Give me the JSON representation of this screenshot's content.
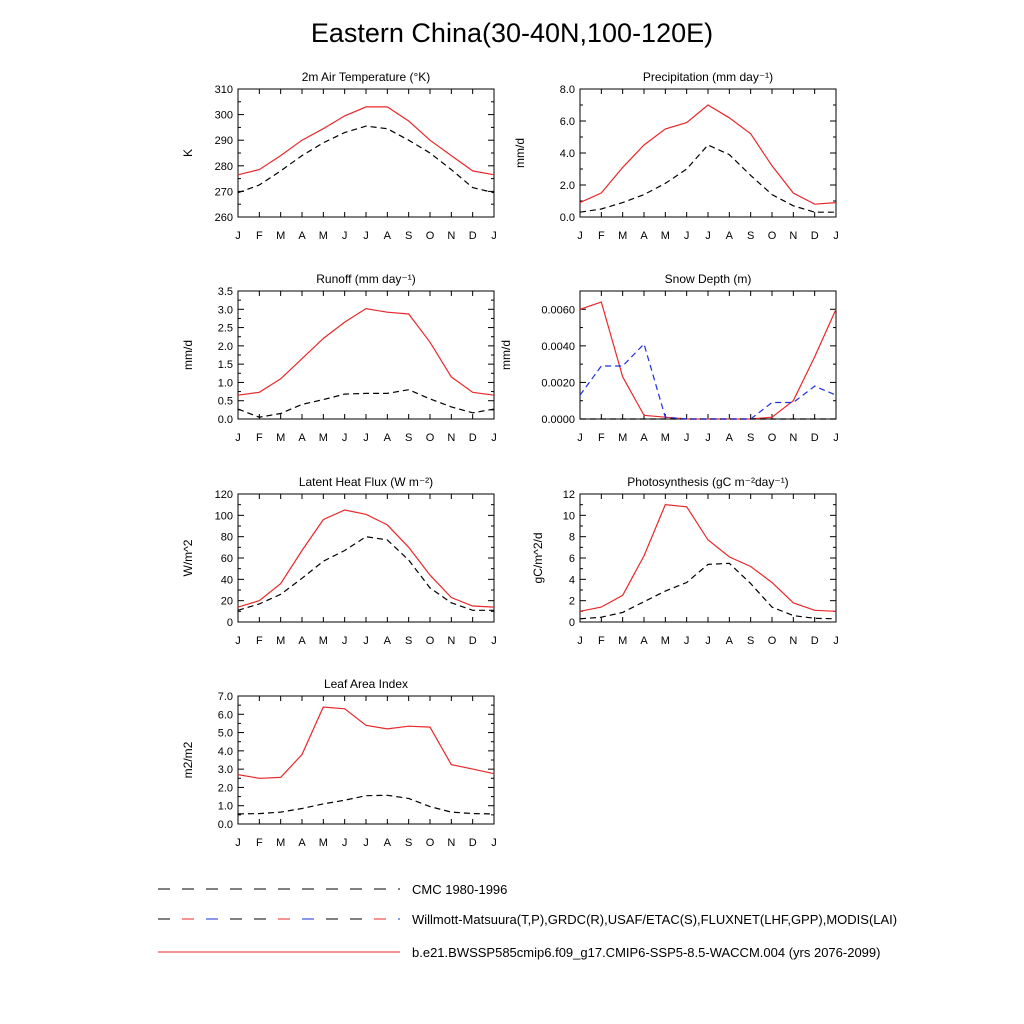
{
  "title": "Eastern China(30-40N,100-120E)",
  "months": [
    "J",
    "F",
    "M",
    "A",
    "M",
    "J",
    "J",
    "A",
    "S",
    "O",
    "N",
    "D",
    "J"
  ],
  "colors": {
    "model": "#e8282a",
    "obs": "#000000",
    "obs_snow": "#1f2ee0"
  },
  "chart_data": [
    {
      "type": "line",
      "title": "2m Air Temperature (°K)",
      "ylabel": "K",
      "ylim": [
        260,
        310
      ],
      "yticks": [
        "260",
        "270",
        "280",
        "290",
        "300",
        "310"
      ],
      "ytick_values": [
        260,
        270,
        280,
        290,
        300,
        310
      ],
      "series": [
        {
          "role": "model",
          "values": [
            276.5,
            278.5,
            284,
            290,
            294.5,
            299.5,
            303,
            303,
            297.5,
            290,
            284,
            278,
            276.5
          ]
        },
        {
          "role": "obs",
          "values": [
            269.5,
            272.5,
            278,
            284,
            289,
            293,
            295.5,
            294.5,
            290,
            285,
            278.5,
            271.5,
            269.5
          ]
        }
      ]
    },
    {
      "type": "line",
      "title": "Precipitation (mm day⁻¹)",
      "ylabel": "mm/d",
      "ylim": [
        0,
        8
      ],
      "yticks": [
        "0.0",
        "2.0",
        "4.0",
        "6.0",
        "8.0"
      ],
      "ytick_values": [
        0,
        2,
        4,
        6,
        8
      ],
      "series": [
        {
          "role": "model",
          "values": [
            0.9,
            1.5,
            3.1,
            4.5,
            5.5,
            5.9,
            7.0,
            6.2,
            5.2,
            3.2,
            1.5,
            0.8,
            0.9
          ]
        },
        {
          "role": "obs",
          "values": [
            0.3,
            0.5,
            0.9,
            1.4,
            2.1,
            3.0,
            4.5,
            3.9,
            2.6,
            1.4,
            0.7,
            0.3,
            0.3
          ]
        }
      ]
    },
    {
      "type": "line",
      "title": "Runoff (mm day⁻¹)",
      "ylabel": "mm/d",
      "ylim": [
        0,
        3.5
      ],
      "yticks": [
        "0.0",
        "0.5",
        "1.0",
        "1.5",
        "2.0",
        "2.5",
        "3.0",
        "3.5"
      ],
      "ytick_values": [
        0,
        0.5,
        1,
        1.5,
        2,
        2.5,
        3,
        3.5
      ],
      "series": [
        {
          "role": "model",
          "values": [
            0.65,
            0.73,
            1.1,
            1.65,
            2.2,
            2.65,
            3.02,
            2.92,
            2.87,
            2.1,
            1.15,
            0.73,
            0.65
          ]
        },
        {
          "role": "obs",
          "values": [
            0.27,
            0.05,
            0.15,
            0.4,
            0.53,
            0.68,
            0.7,
            0.7,
            0.8,
            0.55,
            0.33,
            0.17,
            0.27
          ]
        }
      ]
    },
    {
      "type": "line",
      "title": "Snow Depth (m)",
      "ylabel": "mm/d",
      "ylim": [
        0,
        0.007
      ],
      "yticks": [
        "0.0000",
        "0.0020",
        "0.0040",
        "0.0060"
      ],
      "ytick_values": [
        0,
        0.002,
        0.004,
        0.006
      ],
      "series": [
        {
          "role": "model",
          "values": [
            0.006,
            0.0064,
            0.0023,
            0.0002,
            0.0001,
            0,
            0,
            0,
            0,
            0.0001,
            0.001,
            0.0034,
            0.006
          ]
        },
        {
          "role": "obs",
          "values": [
            0,
            0,
            0,
            0,
            0,
            0,
            0,
            0,
            0,
            0,
            0,
            0,
            0
          ]
        },
        {
          "role": "obs_snow",
          "values": [
            0.0013,
            0.0029,
            0.0029,
            0.0041,
            0.0001,
            0,
            0,
            0,
            0,
            0.0009,
            0.0009,
            0.0018,
            0.0013
          ]
        }
      ]
    },
    {
      "type": "line",
      "title": "Latent Heat Flux (W m⁻²)",
      "ylabel": "W/m^2",
      "ylim": [
        0,
        120
      ],
      "yticks": [
        "0",
        "20",
        "40",
        "60",
        "80",
        "100",
        "120"
      ],
      "ytick_values": [
        0,
        20,
        40,
        60,
        80,
        100,
        120
      ],
      "series": [
        {
          "role": "model",
          "values": [
            14,
            20,
            36,
            67,
            96,
            105,
            101,
            91,
            70,
            44,
            23,
            15,
            14
          ]
        },
        {
          "role": "obs",
          "values": [
            11,
            17,
            26,
            41,
            57,
            67,
            80,
            77,
            58,
            32,
            18,
            11,
            11
          ]
        }
      ]
    },
    {
      "type": "line",
      "title": "Photosynthesis (gC m⁻²day⁻¹)",
      "ylabel": "gC/m^2/d",
      "ylim": [
        0,
        12
      ],
      "yticks": [
        "0",
        "2",
        "4",
        "6",
        "8",
        "10",
        "12"
      ],
      "ytick_values": [
        0,
        2,
        4,
        6,
        8,
        10,
        12
      ],
      "series": [
        {
          "role": "model",
          "values": [
            1.0,
            1.4,
            2.5,
            6.2,
            11.0,
            10.8,
            7.7,
            6.1,
            5.2,
            3.7,
            1.8,
            1.1,
            1.0
          ]
        },
        {
          "role": "obs",
          "values": [
            0.3,
            0.45,
            0.9,
            1.9,
            2.9,
            3.7,
            5.4,
            5.5,
            3.6,
            1.4,
            0.6,
            0.35,
            0.3
          ]
        }
      ]
    },
    {
      "type": "line",
      "title": "Leaf Area Index",
      "ylabel": "m2/m2",
      "ylim": [
        0,
        7
      ],
      "yticks": [
        "0.0",
        "1.0",
        "2.0",
        "3.0",
        "4.0",
        "5.0",
        "6.0",
        "7.0"
      ],
      "ytick_values": [
        0,
        1,
        2,
        3,
        4,
        5,
        6,
        7
      ],
      "series": [
        {
          "role": "model",
          "values": [
            2.7,
            2.5,
            2.55,
            3.8,
            6.4,
            6.3,
            5.4,
            5.2,
            5.35,
            5.3,
            3.25,
            3.0,
            2.75
          ]
        },
        {
          "role": "obs",
          "values": [
            0.55,
            0.57,
            0.65,
            0.85,
            1.1,
            1.3,
            1.55,
            1.57,
            1.4,
            0.95,
            0.65,
            0.57,
            0.55
          ]
        }
      ]
    }
  ],
  "legend": [
    {
      "role": "obs_cmc",
      "label": "CMC 1980-1996"
    },
    {
      "role": "obs_multi",
      "label": "Willmott-Matsuura(T,P),GRDC(R),USAF/ETAC(S),FLUXNET(LHF,GPP),MODIS(LAI)"
    },
    {
      "role": "model",
      "label": "b.e21.BWSSP585cmip6.f09_g17.CMIP6-SSP5-8.5-WACCM.004 (yrs 2076-2099)"
    }
  ]
}
